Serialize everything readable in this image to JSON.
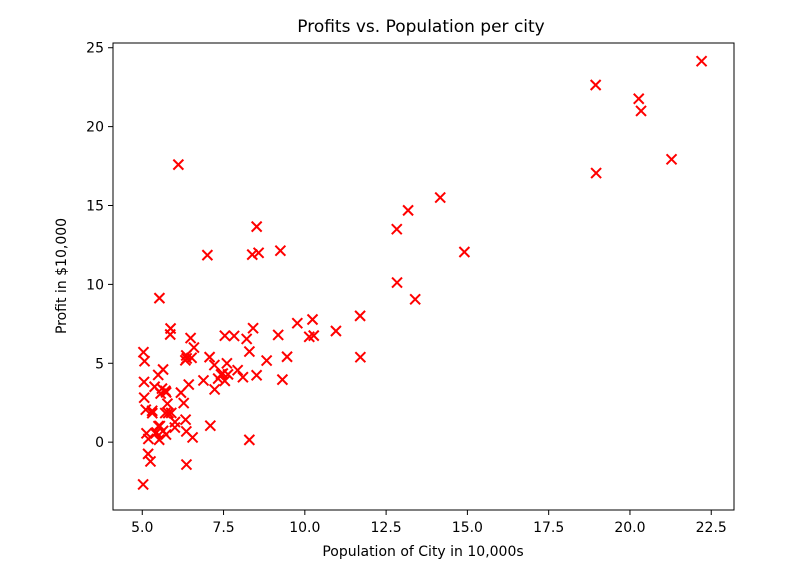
{
  "chart_data": {
    "type": "scatter",
    "title": "Profits vs. Population per city",
    "xlabel": "Population of City in 10,000s",
    "ylabel": "Profit in $10,000",
    "xlim": [
      4.1,
      23.2
    ],
    "ylim": [
      -4.3,
      25.3
    ],
    "x_ticks": [
      5.0,
      7.5,
      10.0,
      12.5,
      15.0,
      17.5,
      20.0,
      22.5
    ],
    "x_tick_labels": [
      "5.0",
      "7.5",
      "10.0",
      "12.5",
      "15.0",
      "17.5",
      "20.0",
      "22.5"
    ],
    "y_ticks": [
      0,
      5,
      10,
      15,
      20,
      25
    ],
    "y_tick_labels": [
      "0",
      "5",
      "10",
      "15",
      "20",
      "25"
    ],
    "grid": false,
    "marker": "x",
    "color": "#ff0000",
    "points": [
      [
        6.1101,
        17.592
      ],
      [
        5.5277,
        9.1302
      ],
      [
        8.5186,
        13.662
      ],
      [
        7.0032,
        11.854
      ],
      [
        5.8598,
        6.8233
      ],
      [
        8.3829,
        11.886
      ],
      [
        7.4764,
        4.3483
      ],
      [
        8.5781,
        12.0
      ],
      [
        6.4862,
        6.5987
      ],
      [
        5.0546,
        3.8166
      ],
      [
        5.7107,
        3.2522
      ],
      [
        14.164,
        15.505
      ],
      [
        5.734,
        3.1551
      ],
      [
        8.4084,
        7.2258
      ],
      [
        5.6407,
        0.71618
      ],
      [
        5.3794,
        3.5129
      ],
      [
        6.3654,
        5.3048
      ],
      [
        5.1301,
        0.56077
      ],
      [
        6.4296,
        3.6518
      ],
      [
        7.0708,
        5.3893
      ],
      [
        6.1891,
        3.1386
      ],
      [
        20.27,
        21.767
      ],
      [
        5.4901,
        4.263
      ],
      [
        6.3261,
        5.1875
      ],
      [
        5.5649,
        3.0825
      ],
      [
        18.945,
        22.638
      ],
      [
        12.828,
        13.501
      ],
      [
        10.957,
        7.0467
      ],
      [
        13.176,
        14.692
      ],
      [
        22.203,
        24.147
      ],
      [
        5.2524,
        -1.22
      ],
      [
        6.5894,
        5.9966
      ],
      [
        9.2482,
        12.134
      ],
      [
        5.8918,
        1.8495
      ],
      [
        8.2111,
        6.5426
      ],
      [
        7.9334,
        4.5623
      ],
      [
        8.0959,
        4.1164
      ],
      [
        5.6063,
        3.3928
      ],
      [
        12.836,
        10.117
      ],
      [
        6.3534,
        5.4974
      ],
      [
        5.4069,
        0.55657
      ],
      [
        6.8825,
        3.9115
      ],
      [
        11.708,
        5.3854
      ],
      [
        5.7737,
        2.4406
      ],
      [
        7.8247,
        6.7318
      ],
      [
        7.0931,
        1.0463
      ],
      [
        5.0702,
        5.1337
      ],
      [
        5.8014,
        1.844
      ],
      [
        11.7,
        8.0043
      ],
      [
        5.5416,
        1.0179
      ],
      [
        7.5402,
        6.7504
      ],
      [
        5.3077,
        1.8396
      ],
      [
        7.4239,
        4.2885
      ],
      [
        7.6031,
        4.9981
      ],
      [
        6.3328,
        1.4233
      ],
      [
        6.3589,
        -1.4211
      ],
      [
        6.2742,
        2.4756
      ],
      [
        5.6397,
        4.6042
      ],
      [
        9.3102,
        3.9624
      ],
      [
        9.4536,
        5.4141
      ],
      [
        8.8254,
        5.1694
      ],
      [
        5.1793,
        -0.74279
      ],
      [
        21.279,
        17.929
      ],
      [
        14.908,
        12.054
      ],
      [
        18.959,
        17.054
      ],
      [
        7.2182,
        4.8852
      ],
      [
        8.2951,
        5.7442
      ],
      [
        10.236,
        7.7754
      ],
      [
        5.4994,
        1.0173
      ],
      [
        20.341,
        20.992
      ],
      [
        10.136,
        6.6799
      ],
      [
        7.3345,
        4.0259
      ],
      [
        6.0062,
        1.2784
      ],
      [
        7.2259,
        3.3411
      ],
      [
        5.0269,
        -2.6807
      ],
      [
        6.5479,
        0.29678
      ],
      [
        7.5386,
        3.8845
      ],
      [
        5.0365,
        5.7014
      ],
      [
        10.274,
        6.7526
      ],
      [
        5.1077,
        2.0576
      ],
      [
        5.7292,
        0.47953
      ],
      [
        5.1884,
        0.20421
      ],
      [
        6.3557,
        0.67861
      ],
      [
        9.7687,
        7.5435
      ],
      [
        6.5159,
        5.3436
      ],
      [
        8.5172,
        4.2415
      ],
      [
        9.1802,
        6.7981
      ],
      [
        6.002,
        0.92695
      ],
      [
        5.5204,
        0.152
      ],
      [
        5.0594,
        2.8214
      ],
      [
        5.7077,
        1.8451
      ],
      [
        7.6366,
        4.2959
      ],
      [
        5.8707,
        7.2029
      ],
      [
        5.3054,
        1.9869
      ],
      [
        8.2934,
        0.14454
      ],
      [
        13.394,
        9.0551
      ],
      [
        5.4369,
        0.61705
      ]
    ]
  }
}
